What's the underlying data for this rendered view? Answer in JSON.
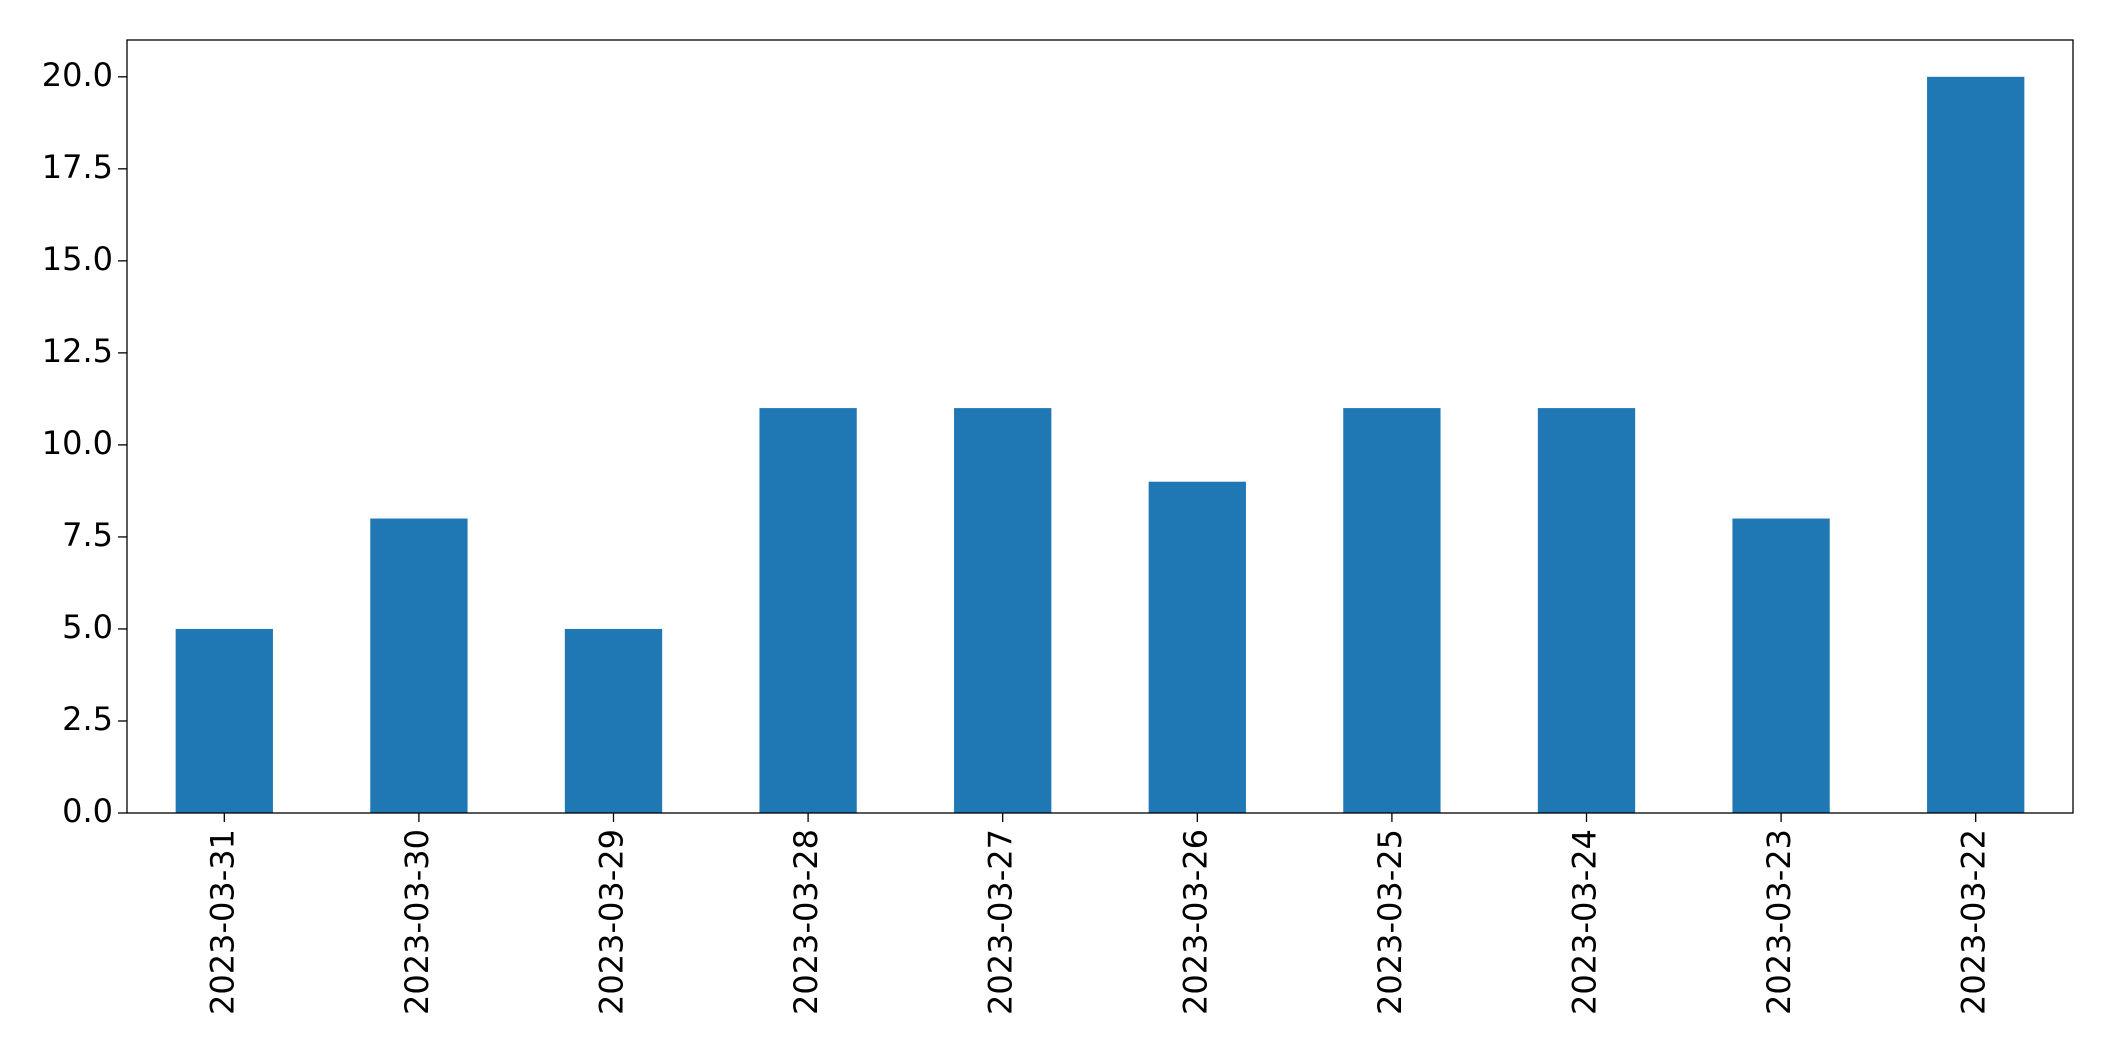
{
  "chart_data": {
    "type": "bar",
    "categories": [
      "2023-03-31",
      "2023-03-30",
      "2023-03-29",
      "2023-03-28",
      "2023-03-27",
      "2023-03-26",
      "2023-03-25",
      "2023-03-24",
      "2023-03-23",
      "2023-03-22"
    ],
    "values": [
      5,
      8,
      5,
      11,
      11,
      9,
      11,
      11,
      8,
      20
    ],
    "color": "#1f77b4",
    "ylim": [
      0,
      21
    ],
    "yticks": [
      {
        "value": 0,
        "label": "0.0"
      },
      {
        "value": 2.5,
        "label": "2.5"
      },
      {
        "value": 5,
        "label": "5.0"
      },
      {
        "value": 7.5,
        "label": "7.5"
      },
      {
        "value": 10,
        "label": "10.0"
      },
      {
        "value": 12.5,
        "label": "12.5"
      },
      {
        "value": 15,
        "label": "15.0"
      },
      {
        "value": 17.5,
        "label": "17.5"
      },
      {
        "value": 20,
        "label": "20.0"
      }
    ],
    "grid": false
  }
}
